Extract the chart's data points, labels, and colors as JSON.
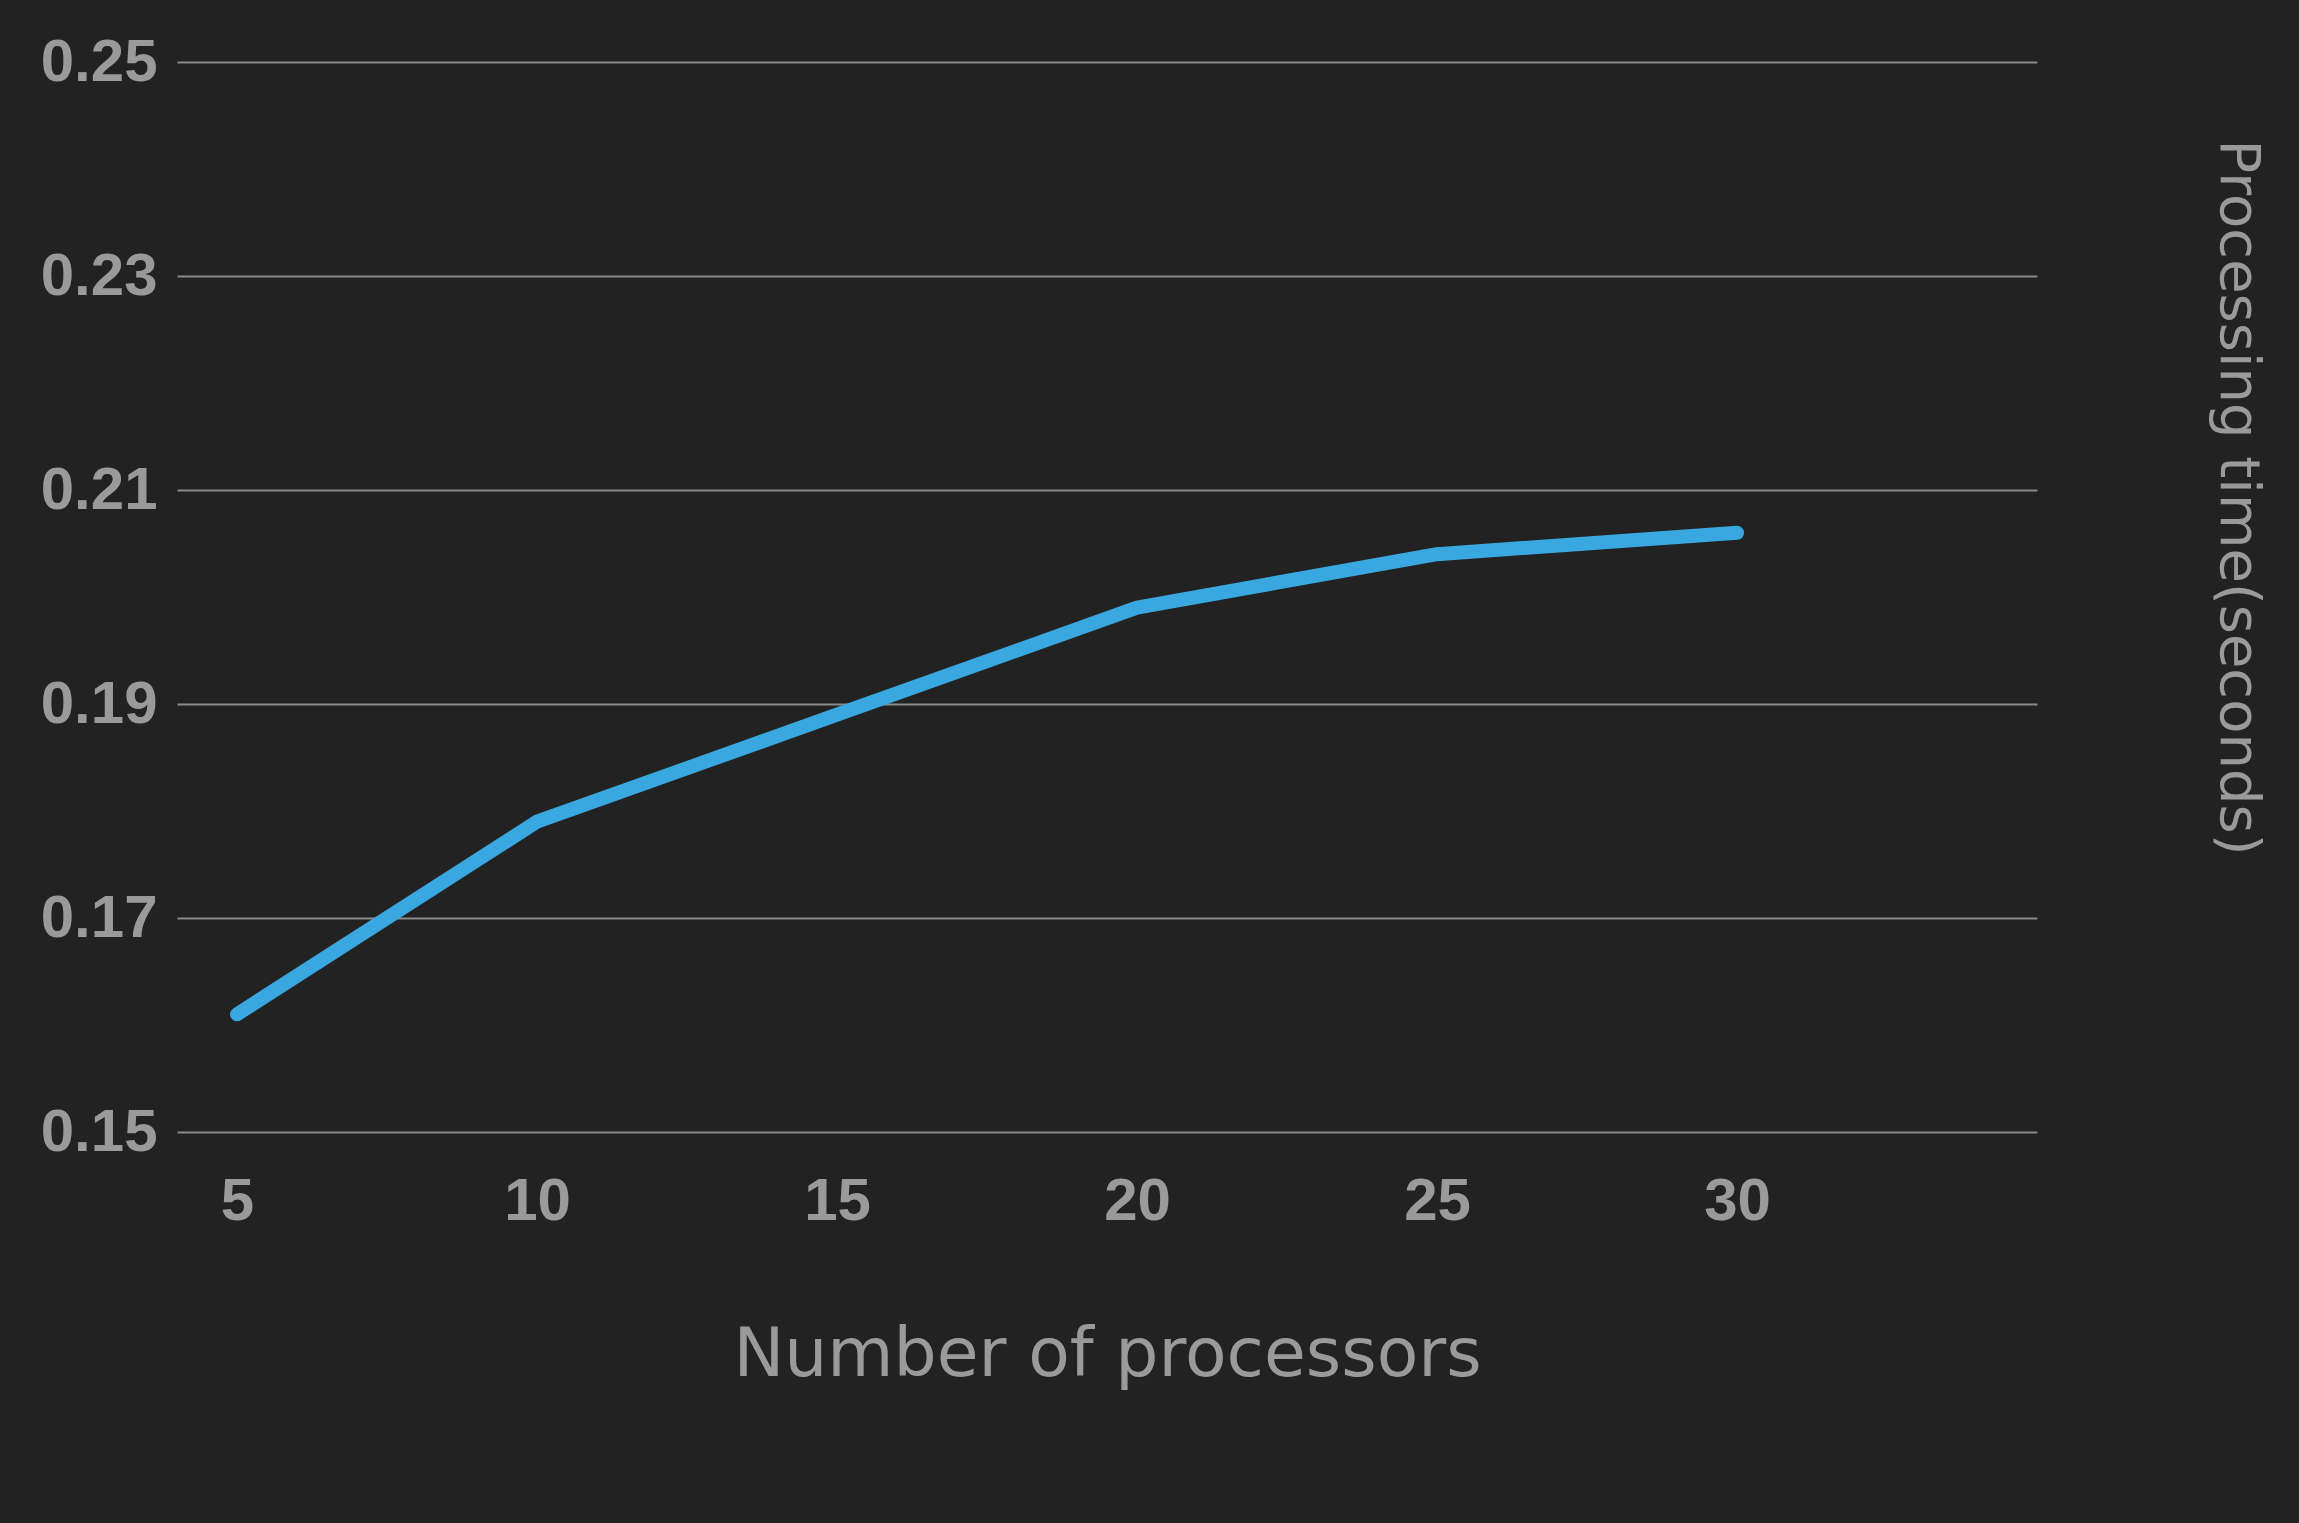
{
  "chart_data": {
    "type": "line",
    "xlabel": "Number of processors",
    "ylabel": "Processing time(seconds)",
    "x": [
      5,
      10,
      15,
      20,
      25,
      30
    ],
    "series": [
      {
        "color": "#3aa8e0",
        "values": [
          0.161,
          0.179,
          0.189,
          0.199,
          0.204,
          0.206
        ]
      }
    ],
    "xlim": [
      4,
      35
    ],
    "xticks": [
      5,
      10,
      15,
      20,
      25,
      30
    ],
    "ylim": [
      0.15,
      0.25
    ],
    "yticks": [
      0.15,
      0.17,
      0.19,
      0.21,
      0.23,
      0.25
    ],
    "grid": "y",
    "marker": "none",
    "line_style": "solid"
  }
}
